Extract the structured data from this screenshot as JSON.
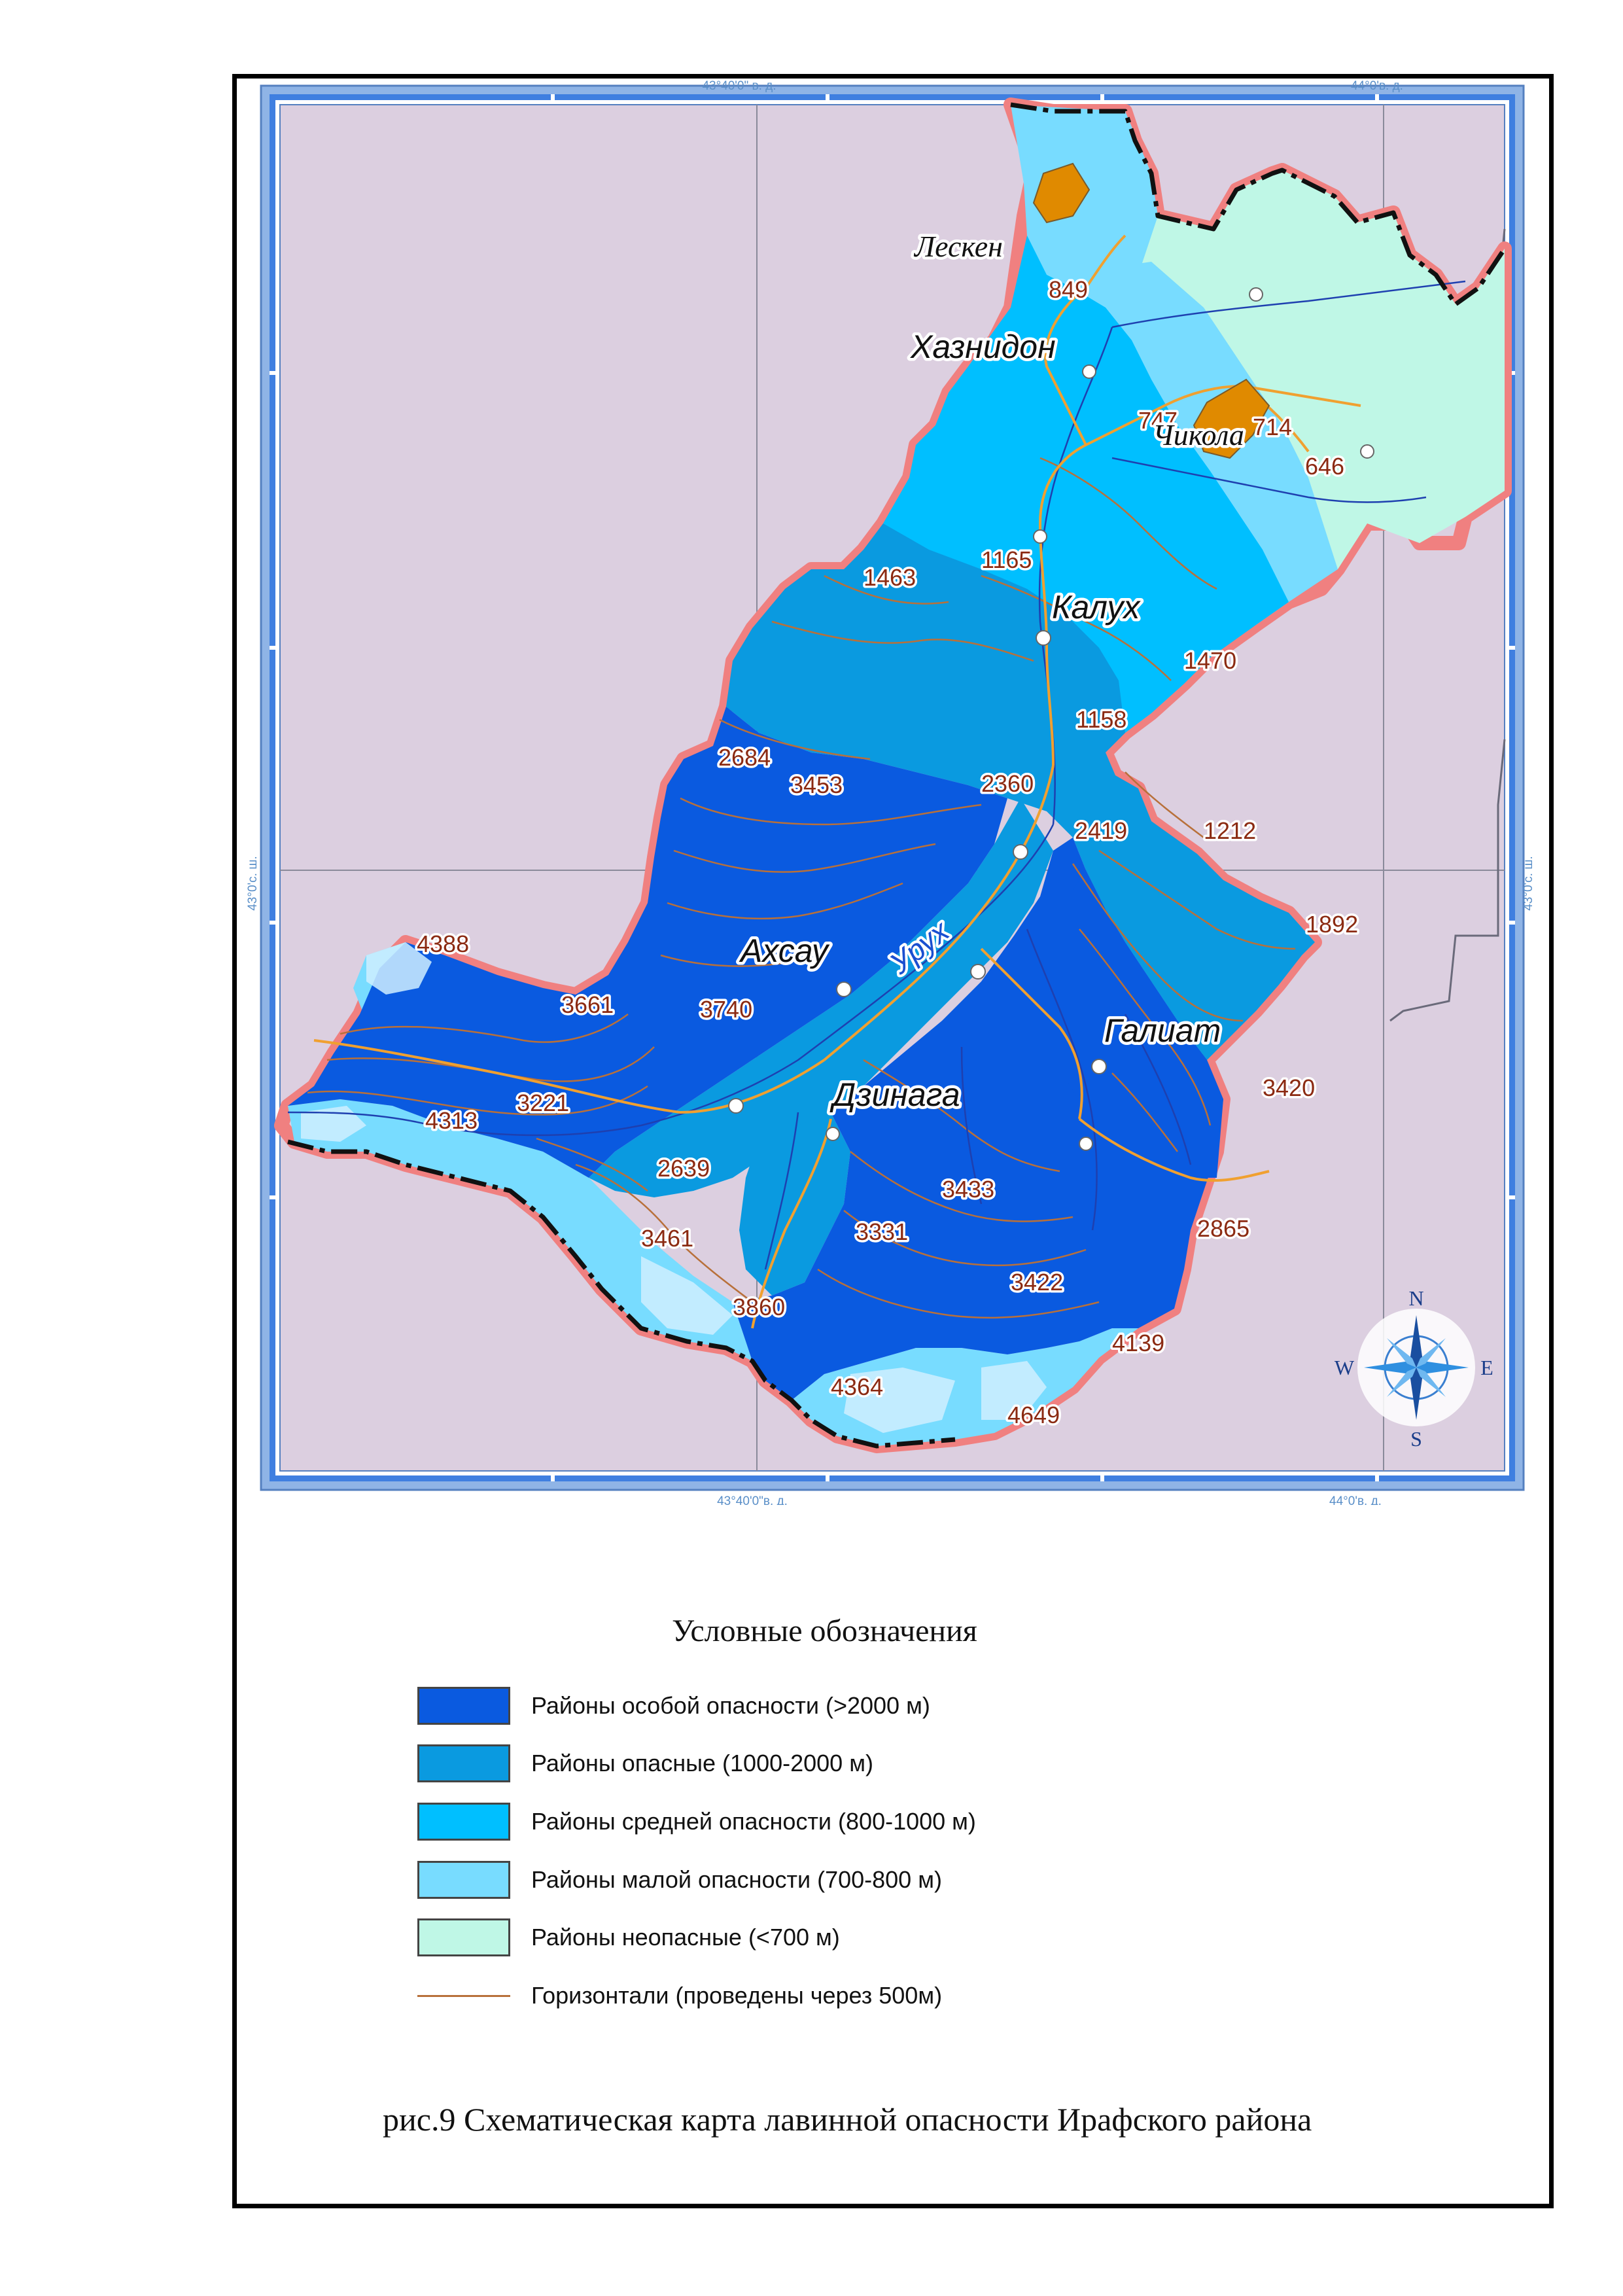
{
  "map": {
    "coord_labels": {
      "top_left": "43°40'0\" в. д.",
      "top_right": "44°0'в. д.",
      "bottom_left": "43°40'0\"в. д.",
      "bottom_right": "44°0'в. д.",
      "left": "43°0'с. ш.",
      "right": "43°0'с. ш."
    },
    "places": {
      "lesken": "Лескен",
      "khaznidon": "Хазнидон",
      "chikola": "Чикола",
      "kalukh": "Калух",
      "akhsau": "Ахсау",
      "dzinaga": "Дзинага",
      "galiat": "Галиат"
    },
    "river": "Урух",
    "elevations": {
      "e849": "849",
      "e747": "747",
      "e714": "714",
      "e646": "646",
      "e1165": "1165",
      "e1463": "1463",
      "e1470": "1470",
      "e1158": "1158",
      "e2360": "2360",
      "e2684": "2684",
      "e3453": "3453",
      "e2419": "2419",
      "e1212": "1212",
      "e1892": "1892",
      "e4388": "4388",
      "e3661": "3661",
      "e3740": "3740",
      "e3420": "3420",
      "e3221": "3221",
      "e4313": "4313",
      "e2639": "2639",
      "e3433": "3433",
      "e3461": "3461",
      "e3331": "3331",
      "e2865": "2865",
      "e3422": "3422",
      "e3860": "3860",
      "e4139": "4139",
      "e4364": "4364",
      "e4649": "4649"
    },
    "compass": {
      "n": "N",
      "s": "S",
      "e": "E",
      "w": "W"
    },
    "colors": {
      "background": "#dccfe0",
      "zone_very_high": "#0a5ae0",
      "zone_high": "#0a9ae0",
      "zone_medium": "#00bfff",
      "zone_low": "#78dcff",
      "zone_none": "#bff7e6",
      "contour": "#b8703a",
      "settlement": "#e08a00",
      "border_glow": "#f08080",
      "frame": "#6b9ad8"
    }
  },
  "legend": {
    "title": "Условные обозначения",
    "items": [
      {
        "label": "Районы особой опасности (>2000 м)",
        "color": "#0a5ae0"
      },
      {
        "label": "Районы опасные (1000-2000 м)",
        "color": "#0a9ae0"
      },
      {
        "label": "Районы средней опасности (800-1000 м)",
        "color": "#00bfff"
      },
      {
        "label": "Районы малой опасности (700-800 м)",
        "color": "#78dcff"
      },
      {
        "label": "Районы неопасные (<700 м)",
        "color": "#bff7e6"
      }
    ],
    "contour_label": "Горизонтали (проведены через 500м)"
  },
  "caption": "рис.9  Схематическая карта лавинной опасности Ирафского района"
}
